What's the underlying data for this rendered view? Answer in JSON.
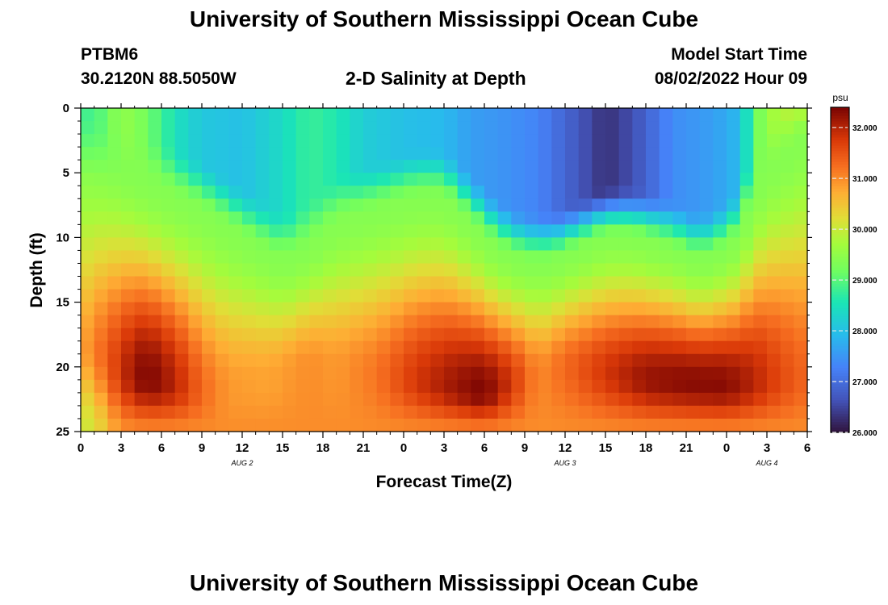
{
  "header": {
    "title": "University of Southern Mississippi Ocean Cube",
    "station": "PTBM6",
    "coordinates": "30.2120N  88.5050W",
    "subtitle": "2-D Salinity at Depth",
    "model_start_label": "Model Start Time",
    "model_start_value": "08/02/2022 Hour 09"
  },
  "footer": {
    "title": "University of Southern Mississippi Ocean Cube"
  },
  "chart_data": {
    "type": "heatmap",
    "title": "2-D Salinity at Depth",
    "xlabel": "Forecast Time(Z)",
    "ylabel": "Depth (ft)",
    "colorbar_label": "psu",
    "x_tick_labels": [
      "0",
      "3",
      "6",
      "9",
      "12",
      "15",
      "18",
      "21",
      "0",
      "3",
      "6",
      "9",
      "12",
      "15",
      "18",
      "21",
      "0",
      "3",
      "6"
    ],
    "x_range_hours": [
      0,
      54
    ],
    "date_labels": [
      {
        "hour": 12,
        "text": "AUG 2"
      },
      {
        "hour": 36,
        "text": "AUG 3"
      },
      {
        "hour": 51,
        "text": "AUG 4"
      }
    ],
    "y_ticks": [
      0,
      5,
      10,
      15,
      20,
      25
    ],
    "y_range": [
      0,
      25
    ],
    "y_inverted": true,
    "colorbar_ticks": [
      "32.000",
      "31.000",
      "30.000",
      "29.000",
      "28.000",
      "27.000",
      "26.000"
    ],
    "colorbar_range": [
      26.0,
      32.4
    ],
    "model": {
      "description": "Approximate salinity field read from the plot, psu",
      "surface_fresh_lens": [
        {
          "start_hour": 7,
          "end_hour": 17,
          "min_psu": 28.0,
          "max_depth_ft": 8
        },
        {
          "start_hour": 17,
          "end_hour": 29,
          "min_psu": 28.0,
          "max_depth_ft": 4
        },
        {
          "start_hour": 29,
          "end_hour": 50,
          "min_psu": 26.2,
          "max_depth_ft": 9
        }
      ],
      "deep_salty_cores": [
        {
          "hour": 5,
          "depth_ft": 21,
          "max_psu": 32.4
        },
        {
          "hour": 30,
          "depth_ft": 22,
          "max_psu": 32.4
        },
        {
          "hour": 48,
          "depth_ft": 21.5,
          "max_psu": 32.3
        }
      ]
    }
  }
}
